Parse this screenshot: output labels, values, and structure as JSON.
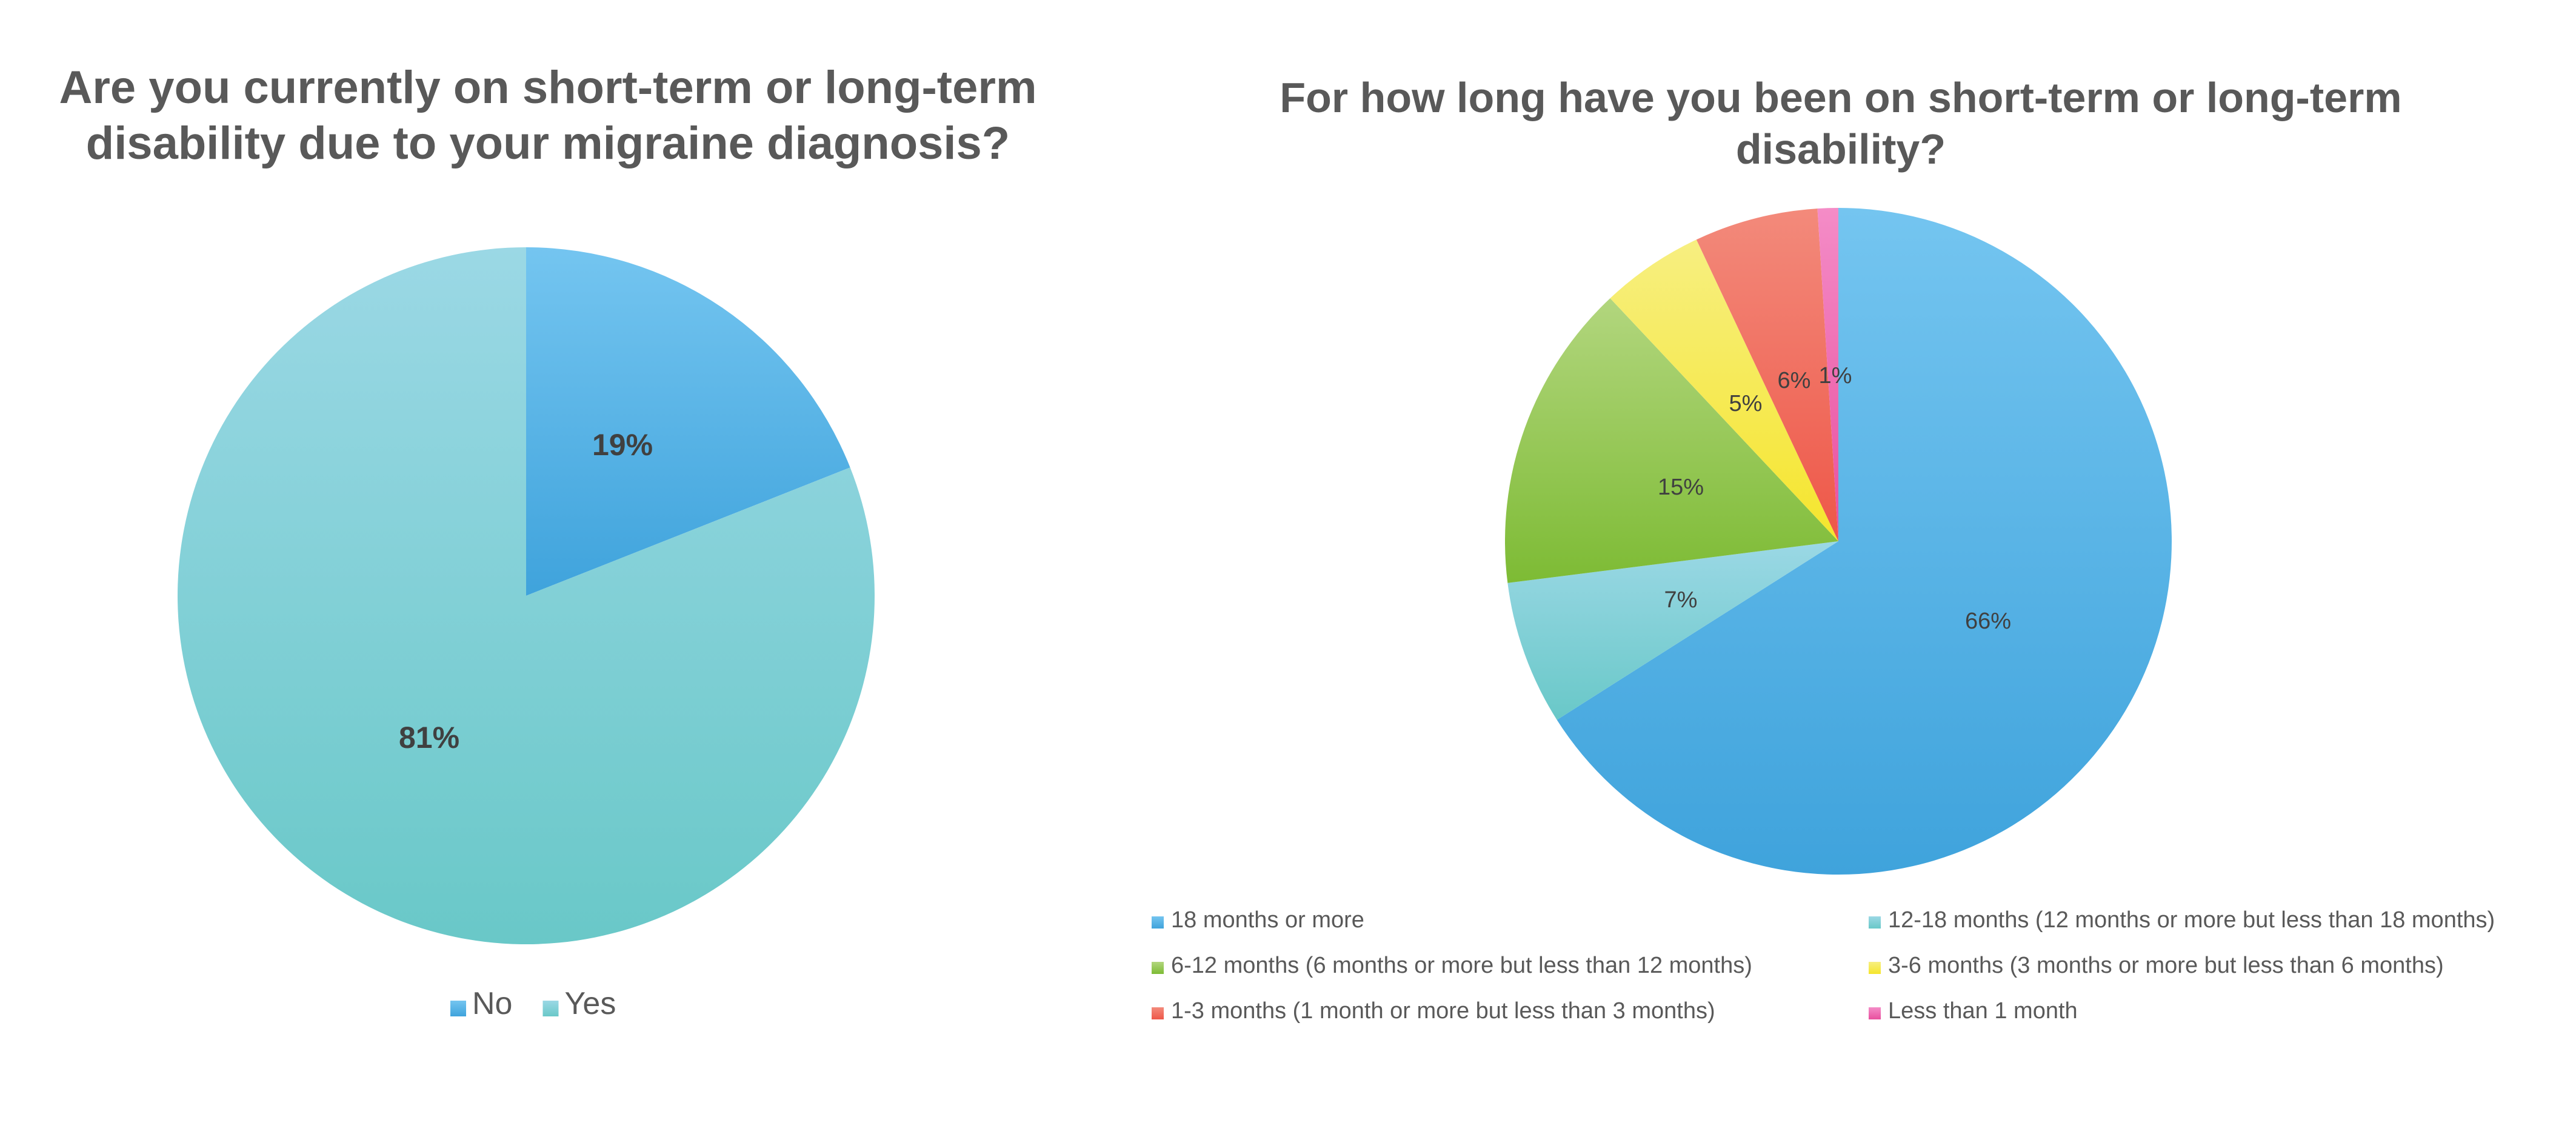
{
  "chart_data": [
    {
      "type": "pie",
      "title": "Are you currently on short-term or long-term disability due to your migraine diagnosis?",
      "title_lines": [
        "Are you currently on short-term or long-term",
        "disability due to your migraine diagnosis?"
      ],
      "categories": [
        "No",
        "Yes"
      ],
      "values": [
        19,
        81
      ],
      "labels": [
        "19%",
        "81%"
      ],
      "colors": [
        [
          "#74c5f0",
          "#3fa3dc"
        ],
        [
          "#9bd8e5",
          "#69c8c8"
        ]
      ],
      "legend_position": "bottom"
    },
    {
      "type": "pie",
      "title": "For how long have you been on short-term or long-term disability?",
      "title_lines": [
        "For how long have you been on short-term or long-term",
        "disability?"
      ],
      "categories": [
        "18 months or more",
        "12-18 months (12 months or more but less than 18 months)",
        "6-12 months (6 months or more but less than 12 months)",
        "3-6 months (3 months or more but less than 6 months)",
        "1-3 months (1 month or more but less than 3 months)",
        "Less than 1 month"
      ],
      "values": [
        66,
        7,
        15,
        5,
        6,
        1
      ],
      "labels": [
        "66%",
        "7%",
        "15%",
        "5%",
        "6%",
        "1%"
      ],
      "colors": [
        [
          "#74c5f0",
          "#3fa3dc"
        ],
        [
          "#9bd8e5",
          "#69c8c8"
        ],
        [
          "#b2d67e",
          "#7dbb34"
        ],
        [
          "#f7ef81",
          "#f5e52c"
        ],
        [
          "#f38a7b",
          "#ee5748"
        ],
        [
          "#f48cc7",
          "#e84f9e"
        ]
      ],
      "legend_position": "bottom"
    }
  ]
}
